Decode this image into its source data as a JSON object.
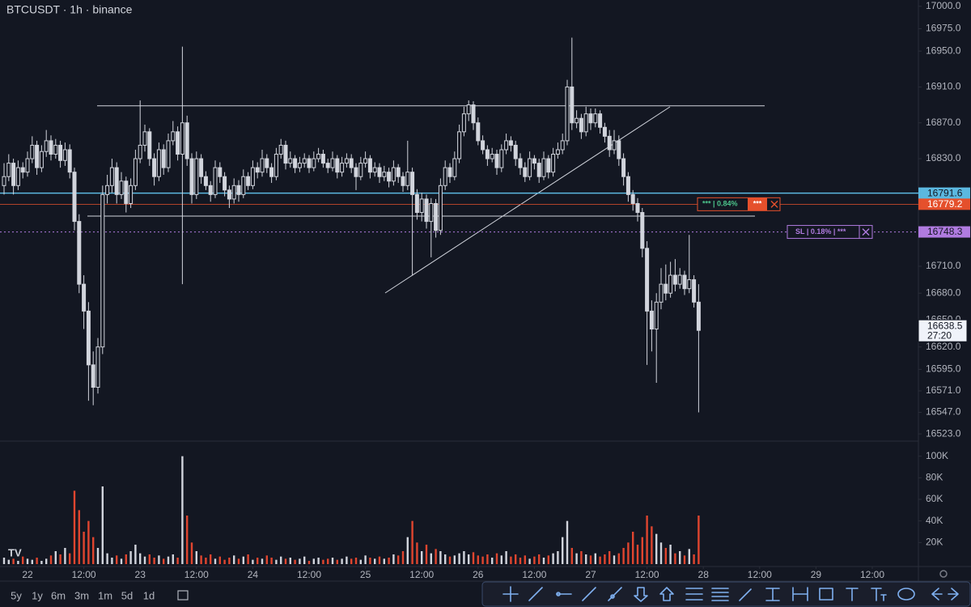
{
  "header": {
    "title": "BTCUSDT · 1h · binance"
  },
  "chart_data": {
    "type": "candlestick",
    "candles": [
      [
        16800,
        16825,
        16790,
        16810
      ],
      [
        16810,
        16835,
        16805,
        16825
      ],
      [
        16825,
        16830,
        16790,
        16800
      ],
      [
        16800,
        16828,
        16795,
        16820
      ],
      [
        16820,
        16826,
        16808,
        16815
      ],
      [
        16815,
        16838,
        16810,
        16830
      ],
      [
        16830,
        16855,
        16825,
        16845
      ],
      [
        16845,
        16850,
        16812,
        16820
      ],
      [
        16820,
        16845,
        16815,
        16838
      ],
      [
        16838,
        16862,
        16832,
        16850
      ],
      [
        16850,
        16856,
        16828,
        16835
      ],
      [
        16835,
        16852,
        16830,
        16845
      ],
      [
        16845,
        16850,
        16820,
        16828
      ],
      [
        16828,
        16848,
        16822,
        16840
      ],
      [
        16840,
        16846,
        16808,
        16815
      ],
      [
        16815,
        16820,
        16750,
        16760
      ],
      [
        16760,
        16768,
        16680,
        16690
      ],
      [
        16690,
        16700,
        16640,
        16660
      ],
      [
        16660,
        16670,
        16560,
        16600
      ],
      [
        16600,
        16615,
        16555,
        16575
      ],
      [
        16575,
        16630,
        16568,
        16620
      ],
      [
        16620,
        16800,
        16612,
        16790
      ],
      [
        16790,
        16812,
        16780,
        16800
      ],
      [
        16800,
        16830,
        16792,
        16820
      ],
      [
        16820,
        16826,
        16780,
        16790
      ],
      [
        16790,
        16815,
        16785,
        16805
      ],
      [
        16805,
        16810,
        16770,
        16780
      ],
      [
        16780,
        16808,
        16775,
        16800
      ],
      [
        16800,
        16840,
        16795,
        16830
      ],
      [
        16830,
        16895,
        16825,
        16845
      ],
      [
        16845,
        16868,
        16838,
        16860
      ],
      [
        16860,
        16864,
        16822,
        16830
      ],
      [
        16830,
        16836,
        16800,
        16810
      ],
      [
        16810,
        16848,
        16805,
        16840
      ],
      [
        16840,
        16846,
        16812,
        16820
      ],
      [
        16820,
        16858,
        16815,
        16850
      ],
      [
        16850,
        16872,
        16845,
        16860
      ],
      [
        16860,
        16866,
        16828,
        16835
      ],
      [
        16835,
        16955,
        16690,
        16870
      ],
      [
        16870,
        16878,
        16822,
        16830
      ],
      [
        16830,
        16836,
        16780,
        16790
      ],
      [
        16790,
        16838,
        16785,
        16830
      ],
      [
        16830,
        16835,
        16802,
        16810
      ],
      [
        16810,
        16816,
        16795,
        16800
      ],
      [
        16800,
        16805,
        16782,
        16790
      ],
      [
        16790,
        16828,
        16786,
        16820
      ],
      [
        16820,
        16826,
        16803,
        16810
      ],
      [
        16810,
        16815,
        16788,
        16795
      ],
      [
        16795,
        16800,
        16775,
        16785
      ],
      [
        16785,
        16808,
        16780,
        16800
      ],
      [
        16800,
        16806,
        16782,
        16790
      ],
      [
        16790,
        16818,
        16786,
        16810
      ],
      [
        16810,
        16815,
        16795,
        16800
      ],
      [
        16800,
        16828,
        16796,
        16820
      ],
      [
        16820,
        16826,
        16808,
        16815
      ],
      [
        16815,
        16840,
        16810,
        16830
      ],
      [
        16830,
        16835,
        16814,
        16820
      ],
      [
        16820,
        16825,
        16803,
        16810
      ],
      [
        16810,
        16842,
        16806,
        16835
      ],
      [
        16835,
        16852,
        16830,
        16845
      ],
      [
        16845,
        16850,
        16818,
        16825
      ],
      [
        16825,
        16838,
        16820,
        16830
      ],
      [
        16830,
        16834,
        16814,
        16820
      ],
      [
        16820,
        16832,
        16815,
        16825
      ],
      [
        16825,
        16836,
        16820,
        16830
      ],
      [
        16830,
        16834,
        16814,
        16820
      ],
      [
        16820,
        16838,
        16816,
        16830
      ],
      [
        16830,
        16842,
        16826,
        16835
      ],
      [
        16835,
        16840,
        16820,
        16825
      ],
      [
        16825,
        16830,
        16814,
        16820
      ],
      [
        16820,
        16838,
        16816,
        16830
      ],
      [
        16830,
        16834,
        16808,
        16815
      ],
      [
        16815,
        16832,
        16810,
        16825
      ],
      [
        16825,
        16836,
        16820,
        16830
      ],
      [
        16830,
        16835,
        16814,
        16820
      ],
      [
        16820,
        16825,
        16795,
        16810
      ],
      [
        16810,
        16832,
        16806,
        16825
      ],
      [
        16825,
        16838,
        16820,
        16830
      ],
      [
        16830,
        16834,
        16808,
        16815
      ],
      [
        16815,
        16826,
        16810,
        16820
      ],
      [
        16820,
        16825,
        16803,
        16810
      ],
      [
        16810,
        16822,
        16805,
        16815
      ],
      [
        16815,
        16820,
        16798,
        16805
      ],
      [
        16805,
        16828,
        16800,
        16820
      ],
      [
        16820,
        16824,
        16803,
        16810
      ],
      [
        16810,
        16815,
        16793,
        16800
      ],
      [
        16800,
        16850,
        16795,
        16815
      ],
      [
        16815,
        16820,
        16700,
        16790
      ],
      [
        16790,
        16796,
        16762,
        16770
      ],
      [
        16770,
        16792,
        16760,
        16785
      ],
      [
        16785,
        16790,
        16752,
        16760
      ],
      [
        16760,
        16786,
        16720,
        16780
      ],
      [
        16780,
        16785,
        16742,
        16750
      ],
      [
        16750,
        16808,
        16745,
        16800
      ],
      [
        16800,
        16828,
        16795,
        16820
      ],
      [
        16820,
        16825,
        16803,
        16810
      ],
      [
        16810,
        16838,
        16806,
        16830
      ],
      [
        16830,
        16868,
        16825,
        16860
      ],
      [
        16860,
        16888,
        16855,
        16880
      ],
      [
        16880,
        16895,
        16872,
        16890
      ],
      [
        16890,
        16894,
        16862,
        16870
      ],
      [
        16870,
        16876,
        16845,
        16850
      ],
      [
        16850,
        16856,
        16835,
        16840
      ],
      [
        16840,
        16845,
        16822,
        16830
      ],
      [
        16830,
        16842,
        16826,
        16835
      ],
      [
        16835,
        16840,
        16812,
        16820
      ],
      [
        16820,
        16846,
        16815,
        16840
      ],
      [
        16840,
        16858,
        16835,
        16850
      ],
      [
        16850,
        16855,
        16838,
        16845
      ],
      [
        16845,
        16850,
        16822,
        16830
      ],
      [
        16830,
        16836,
        16812,
        16820
      ],
      [
        16820,
        16826,
        16804,
        16810
      ],
      [
        16810,
        16838,
        16806,
        16830
      ],
      [
        16830,
        16834,
        16818,
        16825
      ],
      [
        16825,
        16830,
        16803,
        16810
      ],
      [
        16810,
        16838,
        16806,
        16830
      ],
      [
        16830,
        16834,
        16808,
        16815
      ],
      [
        16815,
        16842,
        16810,
        16835
      ],
      [
        16835,
        16848,
        16830,
        16840
      ],
      [
        16840,
        16858,
        16835,
        16850
      ],
      [
        16850,
        16918,
        16845,
        16910
      ],
      [
        16910,
        16965,
        16862,
        16870
      ],
      [
        16870,
        16884,
        16864,
        16875
      ],
      [
        16875,
        16880,
        16852,
        16860
      ],
      [
        16860,
        16888,
        16855,
        16880
      ],
      [
        16880,
        16886,
        16862,
        16870
      ],
      [
        16870,
        16886,
        16865,
        16880
      ],
      [
        16880,
        16884,
        16858,
        16865
      ],
      [
        16865,
        16870,
        16848,
        16855
      ],
      [
        16855,
        16862,
        16832,
        16840
      ],
      [
        16840,
        16862,
        16835,
        16850
      ],
      [
        16850,
        16856,
        16822,
        16830
      ],
      [
        16830,
        16836,
        16800,
        16810
      ],
      [
        16810,
        16815,
        16782,
        16790
      ],
      [
        16790,
        16795,
        16772,
        16780
      ],
      [
        16780,
        16786,
        16760,
        16770
      ],
      [
        16770,
        16775,
        16720,
        16730
      ],
      [
        16730,
        16738,
        16600,
        16660
      ],
      [
        16660,
        16672,
        16615,
        16640
      ],
      [
        16640,
        16680,
        16580,
        16670
      ],
      [
        16670,
        16708,
        16662,
        16690
      ],
      [
        16690,
        16712,
        16672,
        16680
      ],
      [
        16680,
        16715,
        16675,
        16700
      ],
      [
        16700,
        16718,
        16682,
        16690
      ],
      [
        16690,
        16708,
        16685,
        16700
      ],
      [
        16700,
        16705,
        16678,
        16685
      ],
      [
        16685,
        16745,
        16680,
        16695
      ],
      [
        16695,
        16700,
        16664,
        16670
      ],
      [
        16670,
        16690,
        16547,
        16638.5
      ]
    ],
    "volume": [
      6000,
      4000,
      5000,
      3000,
      7000,
      5000,
      4000,
      6000,
      3000,
      5000,
      8000,
      12000,
      9000,
      15000,
      10000,
      68000,
      50000,
      30000,
      40000,
      25000,
      15000,
      72000,
      10000,
      6000,
      8000,
      5000,
      9000,
      12000,
      18000,
      10000,
      7000,
      9000,
      6000,
      8000,
      5000,
      7000,
      9000,
      6000,
      100000,
      45000,
      20000,
      12000,
      8000,
      6000,
      9000,
      5000,
      7000,
      4000,
      6000,
      8000,
      5000,
      7000,
      9000,
      4000,
      6000,
      5000,
      8000,
      6000,
      4000,
      7000,
      5000,
      6000,
      4000,
      5000,
      7000,
      3000,
      5000,
      6000,
      4000,
      5000,
      6000,
      4000,
      5000,
      7000,
      5000,
      6000,
      4000,
      8000,
      6000,
      5000,
      7000,
      5000,
      6000,
      9000,
      8000,
      12000,
      25000,
      40000,
      20000,
      12000,
      18000,
      10000,
      14000,
      12000,
      9000,
      7000,
      8000,
      10000,
      12000,
      9000,
      11000,
      8000,
      7000,
      9000,
      6000,
      10000,
      8000,
      12000,
      7000,
      9000,
      6000,
      8000,
      5000,
      7000,
      9000,
      6000,
      8000,
      10000,
      12000,
      25000,
      40000,
      15000,
      10000,
      12000,
      9000,
      8000,
      10000,
      7000,
      9000,
      12000,
      8000,
      10000,
      15000,
      20000,
      30000,
      18000,
      25000,
      45000,
      35000,
      28000,
      20000,
      15000,
      18000,
      10000,
      12000,
      8000,
      14000,
      9000,
      45000
    ],
    "up_color": "#d1d4dc",
    "down_color": "#e0452f",
    "ylim": [
      16515,
      17007
    ],
    "yticks": [
      {
        "value": 17000,
        "label": "17000.0"
      },
      {
        "value": 16975,
        "label": "16975.0"
      },
      {
        "value": 16950,
        "label": "16950.0"
      },
      {
        "value": 16910,
        "label": "16910.0"
      },
      {
        "value": 16870,
        "label": "16870.0"
      },
      {
        "value": 16830,
        "label": "16830.0"
      },
      {
        "value": 16710,
        "label": "16710.0"
      },
      {
        "value": 16680,
        "label": "16680.0"
      },
      {
        "value": 16650,
        "label": "16650.0"
      },
      {
        "value": 16620,
        "label": "16620.0"
      },
      {
        "value": 16595,
        "label": "16595.0"
      },
      {
        "value": 16571,
        "label": "16571.0"
      },
      {
        "value": 16547,
        "label": "16547.0"
      },
      {
        "value": 16523,
        "label": "16523.0"
      }
    ],
    "volume_ylim": [
      0,
      108000
    ],
    "volume_yticks": [
      {
        "value": 20000,
        "label": "20K"
      },
      {
        "value": 40000,
        "label": "40K"
      },
      {
        "value": 60000,
        "label": "60K"
      },
      {
        "value": 80000,
        "label": "80K"
      },
      {
        "value": 100000,
        "label": "100K"
      }
    ],
    "xticks": [
      {
        "value": 5,
        "label": "22"
      },
      {
        "value": 17,
        "label": "12:00"
      },
      {
        "value": 29,
        "label": "23"
      },
      {
        "value": 41,
        "label": "12:00"
      },
      {
        "value": 53,
        "label": "24"
      },
      {
        "value": 65,
        "label": "12:00"
      },
      {
        "value": 77,
        "label": "25"
      },
      {
        "value": 89,
        "label": "12:00"
      },
      {
        "value": 101,
        "label": "26"
      },
      {
        "value": 113,
        "label": "12:00"
      },
      {
        "value": 125,
        "label": "27"
      },
      {
        "value": 137,
        "label": "12:00"
      },
      {
        "value": 149,
        "label": "28"
      },
      {
        "value": 161,
        "label": "12:00"
      },
      {
        "value": 173,
        "label": "29"
      },
      {
        "value": 185,
        "label": "12:00"
      }
    ],
    "price_lines": [
      {
        "value": 16791.6,
        "color": "#5bb8e0",
        "style": "solid"
      },
      {
        "value": 16779.2,
        "color": "#e5502c",
        "style": "solid"
      },
      {
        "value": 16748.3,
        "color": "#b07be0",
        "style": "dotted"
      }
    ],
    "drawings": [
      {
        "value": 16889
      },
      {
        "value": 16766
      }
    ],
    "last": {
      "value": 16638.5,
      "countdown": "27:20"
    },
    "orders": [
      {
        "text": "*** | 0.84%",
        "action": "***"
      },
      {
        "text": "SL | 0.18% | ***"
      }
    ]
  },
  "toolbar": {
    "ranges": [
      "5y",
      "1y",
      "6m",
      "3m",
      "1m",
      "5d",
      "1d"
    ]
  }
}
